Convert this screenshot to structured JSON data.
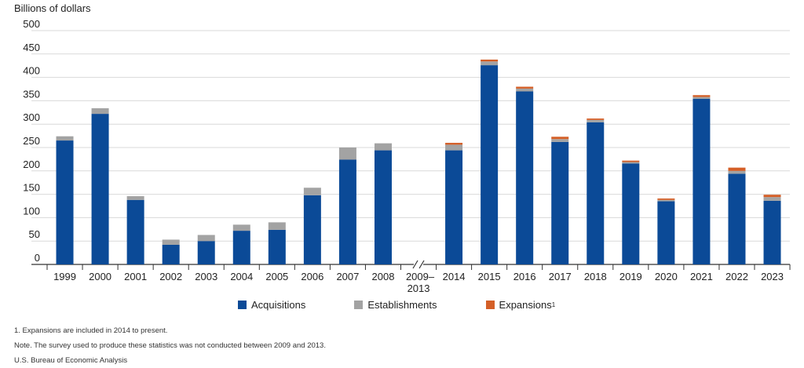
{
  "chart_data": {
    "type": "bar",
    "stacked": true,
    "ylabel": "Billions of dollars",
    "ylim": [
      0,
      500
    ],
    "yticks": [
      0,
      50,
      100,
      150,
      200,
      250,
      300,
      350,
      400,
      450,
      500
    ],
    "grid": true,
    "categories": [
      "1999",
      "2000",
      "2001",
      "2002",
      "2003",
      "2004",
      "2005",
      "2006",
      "2007",
      "2008",
      "2009–2013",
      "2014",
      "2015",
      "2016",
      "2017",
      "2018",
      "2019",
      "2020",
      "2021",
      "2022",
      "2023"
    ],
    "series": [
      {
        "name": "Acquisitions",
        "color": "#0b4a97",
        "values": [
          265,
          322,
          138,
          42,
          50,
          72,
          74,
          148,
          224,
          244,
          null,
          244,
          426,
          370,
          262,
          304,
          216,
          135,
          354,
          194,
          136
        ]
      },
      {
        "name": "Establishments",
        "color": "#a3a3a3",
        "values": [
          9,
          12,
          8,
          11,
          13,
          13,
          16,
          16,
          26,
          15,
          null,
          12,
          8,
          6,
          6,
          5,
          3,
          3,
          4,
          6,
          8
        ]
      },
      {
        "name": "Expansions",
        "name_sup": "1",
        "color": "#d45f27",
        "values": [
          null,
          null,
          null,
          null,
          null,
          null,
          null,
          null,
          null,
          null,
          null,
          4,
          4,
          4,
          5,
          3,
          3,
          3,
          4,
          7,
          5
        ]
      }
    ],
    "legend_position": "bottom"
  },
  "notes": {
    "footnote": "1. Expansions are included in 2014 to present.",
    "note": "Note. The survey used to produce these statistics was not conducted between 2009 and 2013.",
    "source": "U.S. Bureau of Economic Analysis"
  }
}
